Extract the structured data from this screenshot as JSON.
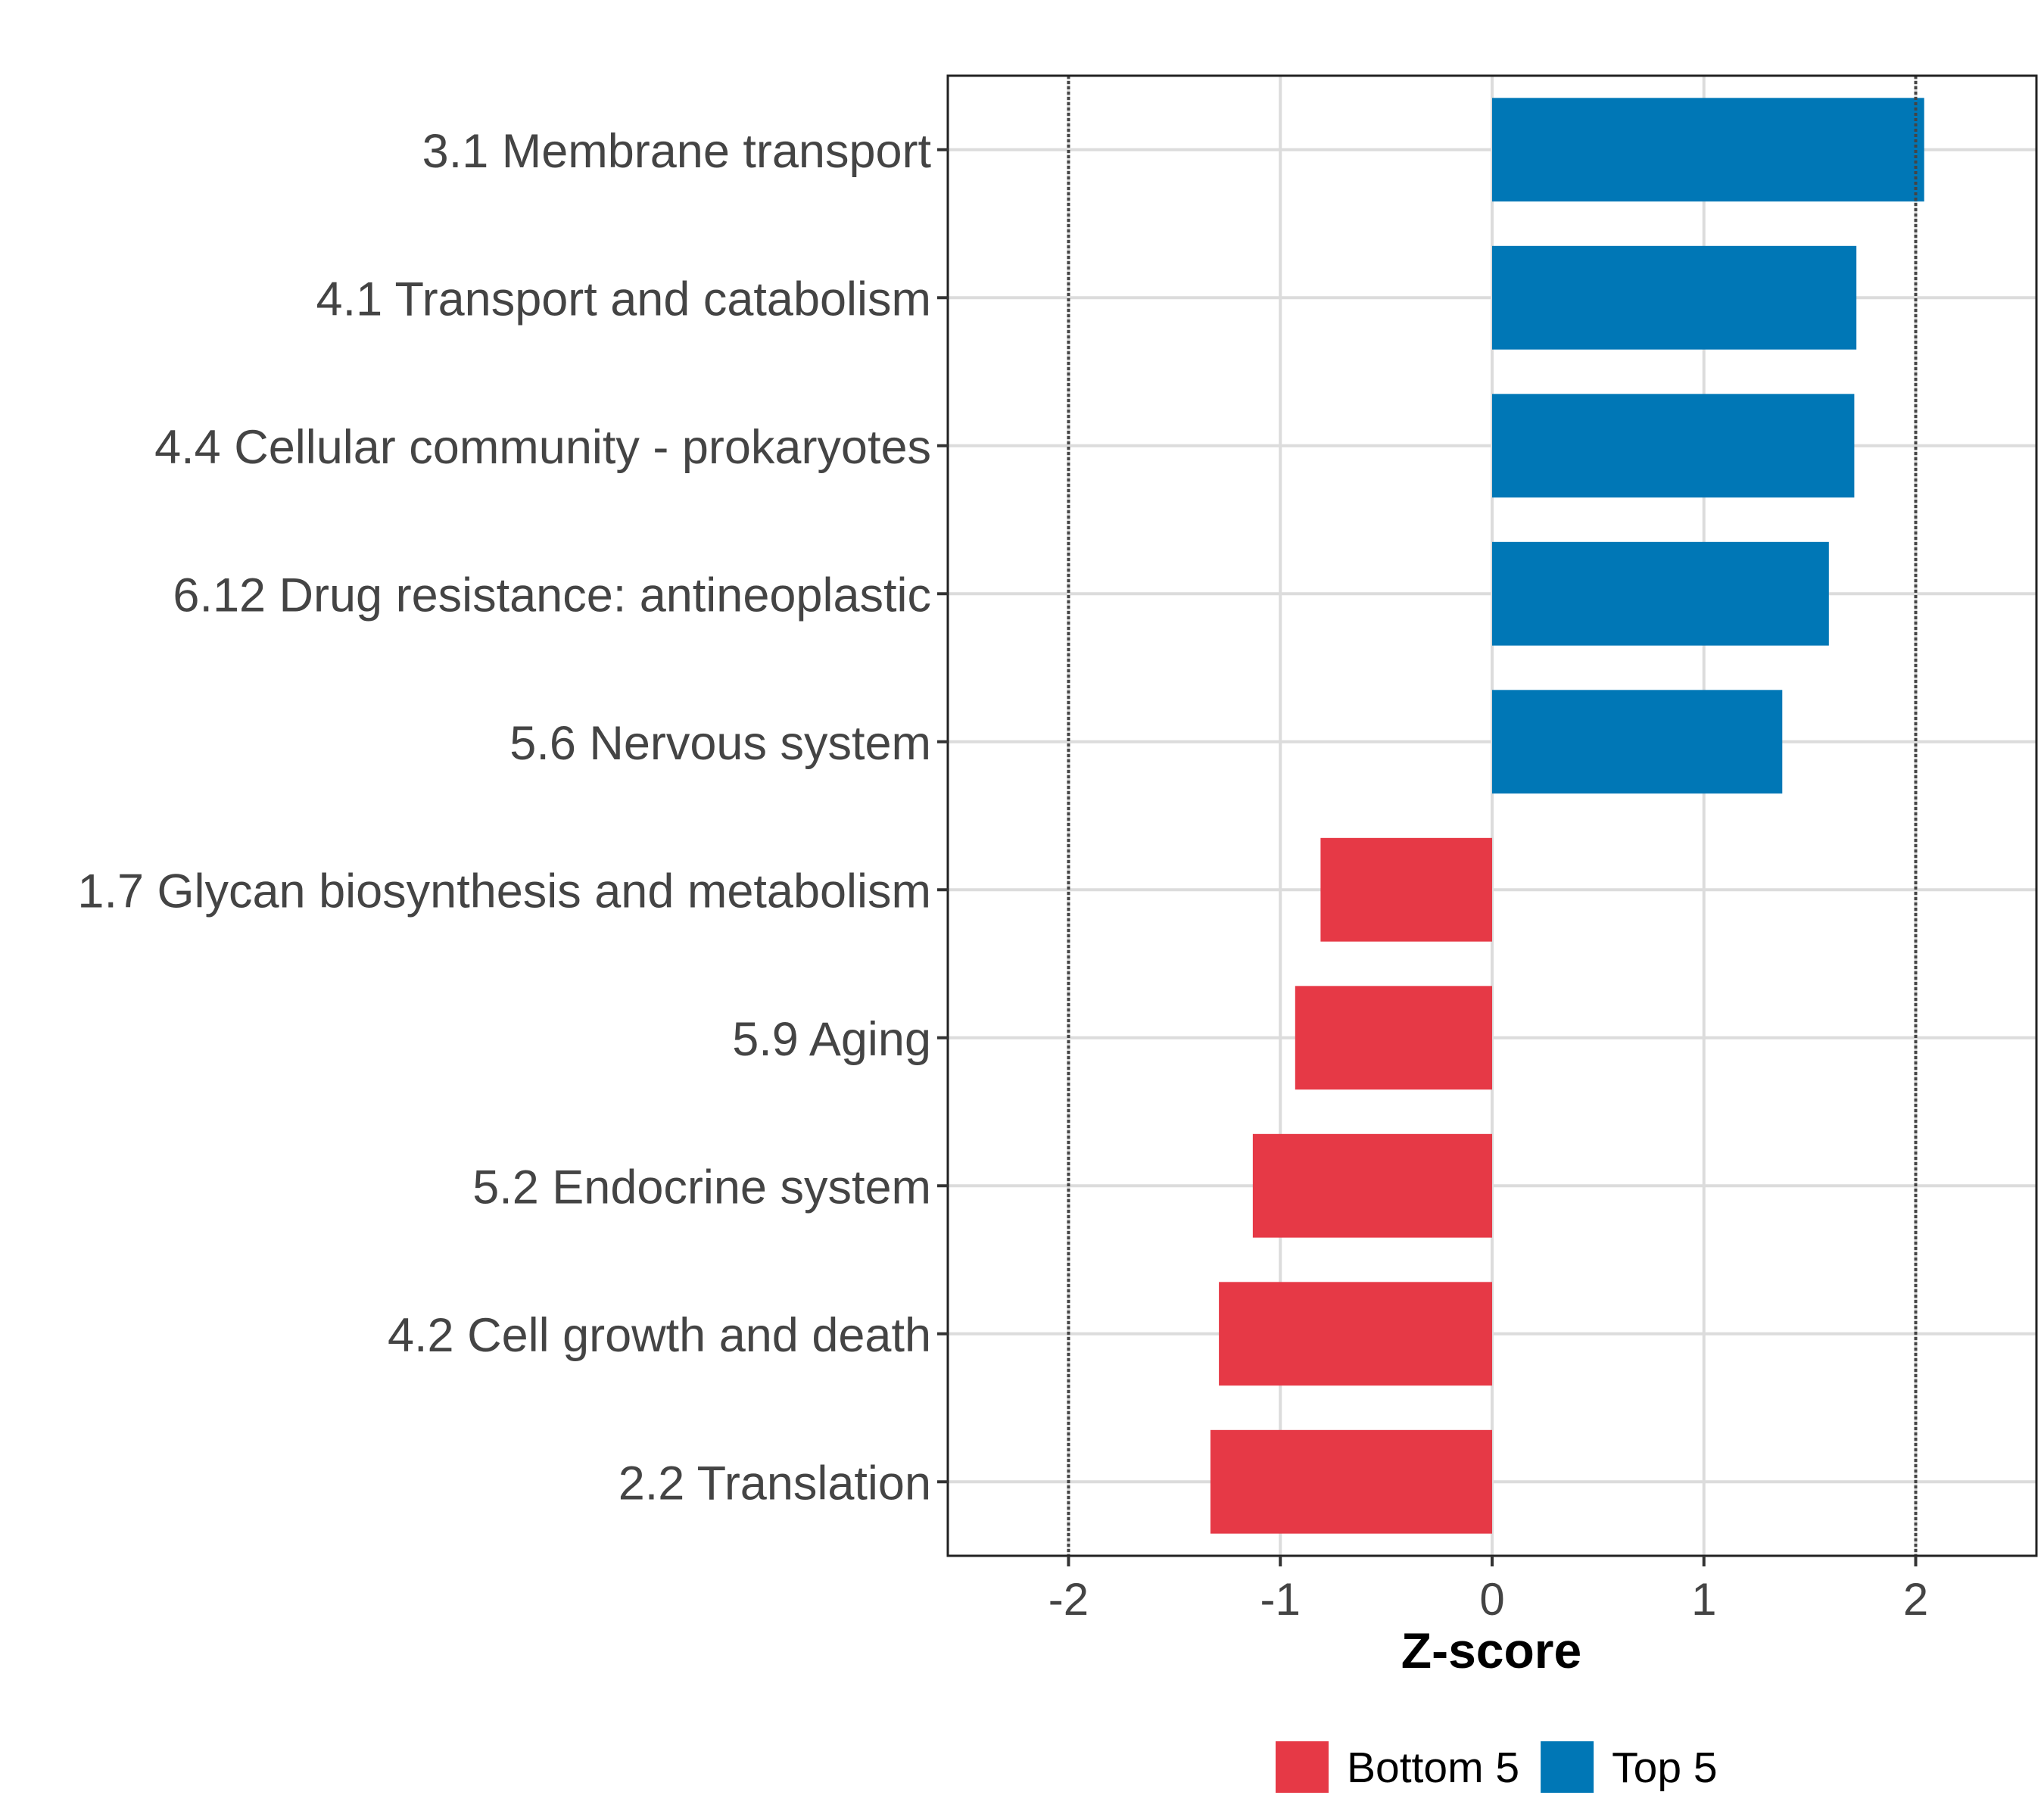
{
  "chart_data": {
    "type": "bar",
    "orientation": "horizontal",
    "title": "",
    "xlabel": "Z-score",
    "ylabel": "",
    "xlim": [
      -2.57,
      2.57
    ],
    "xticks": [
      -2,
      -1,
      0,
      1,
      2
    ],
    "xtick_labels": [
      "-2",
      "-1",
      "0",
      "1",
      "2"
    ],
    "reference_lines": [
      -2,
      2
    ],
    "grid": true,
    "legend_position": "bottom",
    "categories": [
      "3.1 Membrane transport",
      "4.1 Transport and catabolism",
      "4.4 Cellular community - prokaryotes",
      "6.12 Drug resistance: antineoplastic",
      "5.6 Nervous system",
      "1.7 Glycan biosynthesis and metabolism",
      "5.9 Aging",
      "5.2 Endocrine system",
      "4.2 Cell growth and death",
      "2.2 Translation"
    ],
    "values": [
      2.04,
      1.72,
      1.71,
      1.59,
      1.37,
      -0.81,
      -0.93,
      -1.13,
      -1.29,
      -1.33
    ],
    "groups": [
      "Top 5",
      "Top 5",
      "Top 5",
      "Top 5",
      "Top 5",
      "Bottom 5",
      "Bottom 5",
      "Bottom 5",
      "Bottom 5",
      "Bottom 5"
    ],
    "legend": [
      {
        "label": "Bottom 5",
        "color": "#E63946"
      },
      {
        "label": "Top 5",
        "color": "#0077B6"
      }
    ]
  }
}
